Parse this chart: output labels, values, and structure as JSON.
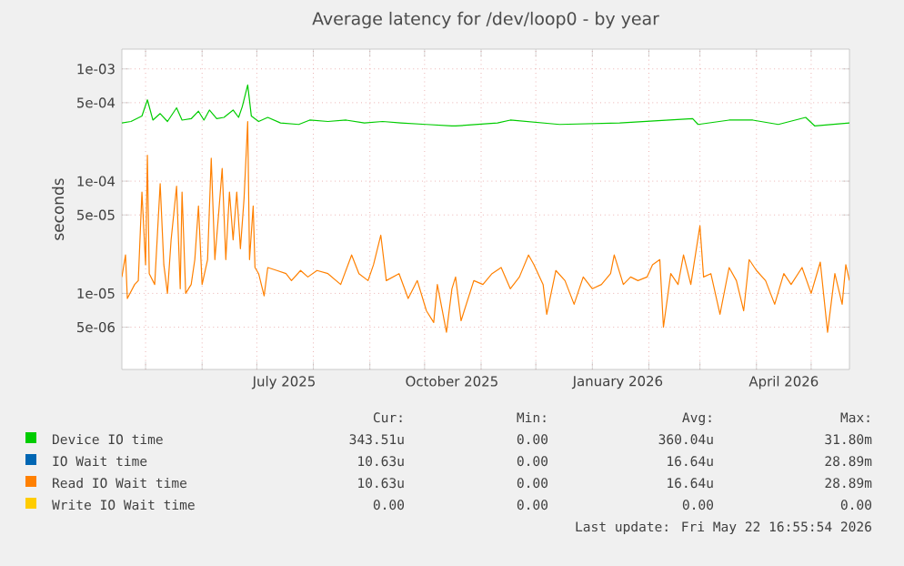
{
  "chart_data": {
    "type": "line",
    "title": "Average latency for /dev/loop0 - by year",
    "ylabel": "seconds",
    "log": "y",
    "grid": true,
    "legend": "bottom",
    "line_style": "solid",
    "xlim": [
      "2025-04-18",
      "2026-05-22"
    ],
    "xticks": [
      {
        "value": "2025-05-01",
        "label": null
      },
      {
        "value": "2025-06-01",
        "label": null
      },
      {
        "value": "2025-07-01",
        "label": null
      },
      {
        "value": "2025-08-01",
        "label": null
      },
      {
        "value": "2025-09-01",
        "label": null
      },
      {
        "value": "2025-10-01",
        "label": null
      },
      {
        "value": "2025-11-01",
        "label": null
      },
      {
        "value": "2025-12-01",
        "label": null
      },
      {
        "value": "2026-01-01",
        "label": null
      },
      {
        "value": "2026-02-01",
        "label": null
      },
      {
        "value": "2026-03-01",
        "label": null
      },
      {
        "value": "2026-04-01",
        "label": null
      },
      {
        "value": "2026-05-01",
        "label": null
      },
      {
        "value": "2025-07-16",
        "label": "July 2025"
      },
      {
        "value": "2025-10-16",
        "label": "October 2025"
      },
      {
        "value": "2026-01-15",
        "label": "January 2026"
      },
      {
        "value": "2026-04-16",
        "label": "April 2026"
      }
    ],
    "ylim": [
      2.1e-06,
      0.0015
    ],
    "yticks": [
      {
        "value": 5e-06,
        "label": "5e-06"
      },
      {
        "value": 1e-05,
        "label": "1e-05"
      },
      {
        "value": 5e-05,
        "label": "5e-05"
      },
      {
        "value": 0.0001,
        "label": "1e-04"
      },
      {
        "value": 0.0005,
        "label": "5e-04"
      },
      {
        "value": 0.001,
        "label": "1e-03"
      }
    ],
    "series": [
      {
        "name": "Device IO time",
        "color": "#00cc00",
        "x": [
          "2025-04-18",
          "2025-04-23",
          "2025-04-29",
          "2025-05-02",
          "2025-05-05",
          "2025-05-09",
          "2025-05-13",
          "2025-05-18",
          "2025-05-21",
          "2025-05-26",
          "2025-05-30",
          "2025-06-02",
          "2025-06-05",
          "2025-06-09",
          "2025-06-13",
          "2025-06-18",
          "2025-06-21",
          "2025-06-23",
          "2025-06-26",
          "2025-06-28",
          "2025-07-02",
          "2025-07-07",
          "2025-07-14",
          "2025-07-24",
          "2025-07-30",
          "2025-08-09",
          "2025-08-19",
          "2025-08-29",
          "2025-09-08",
          "2025-09-18",
          "2025-10-02",
          "2025-10-16",
          "2025-10-18",
          "2025-11-10",
          "2025-11-17",
          "2025-12-14",
          "2026-01-16",
          "2026-02-25",
          "2026-02-28",
          "2026-03-17",
          "2026-03-30",
          "2026-04-13",
          "2026-04-28",
          "2026-05-03",
          "2026-05-22"
        ],
        "values": [
          0.00033,
          0.00034,
          0.00038,
          0.00053,
          0.00035,
          0.0004,
          0.00034,
          0.00045,
          0.00035,
          0.00036,
          0.00042,
          0.00035,
          0.00043,
          0.00036,
          0.00037,
          0.00043,
          0.00037,
          0.00046,
          0.00072,
          0.00038,
          0.00034,
          0.00037,
          0.00033,
          0.00032,
          0.00035,
          0.00034,
          0.00035,
          0.00033,
          0.00034,
          0.00033,
          0.00032,
          0.00031,
          0.00031,
          0.00033,
          0.00035,
          0.00032,
          0.00033,
          0.00036,
          0.00032,
          0.00035,
          0.00035,
          0.00032,
          0.00037,
          0.00031,
          0.00033
        ]
      },
      {
        "name": "IO Wait time",
        "color": "#0066b3"
      },
      {
        "name": "Read IO Wait time",
        "color": "#ff8000",
        "x": [
          "2025-04-18",
          "2025-04-20",
          "2025-04-21",
          "2025-04-25",
          "2025-04-27",
          "2025-04-29",
          "2025-05-01",
          "2025-05-02",
          "2025-05-03",
          "2025-05-06",
          "2025-05-09",
          "2025-05-11",
          "2025-05-13",
          "2025-05-15",
          "2025-05-18",
          "2025-05-20",
          "2025-05-21",
          "2025-05-23",
          "2025-05-26",
          "2025-05-28",
          "2025-05-30",
          "2025-06-01",
          "2025-06-04",
          "2025-06-06",
          "2025-06-08",
          "2025-06-10",
          "2025-06-12",
          "2025-06-14",
          "2025-06-16",
          "2025-06-18",
          "2025-06-20",
          "2025-06-22",
          "2025-06-24",
          "2025-06-26",
          "2025-06-27",
          "2025-06-29",
          "2025-06-30",
          "2025-07-02",
          "2025-07-05",
          "2025-07-07",
          "2025-07-12",
          "2025-07-17",
          "2025-07-20",
          "2025-07-25",
          "2025-07-29",
          "2025-08-03",
          "2025-08-09",
          "2025-08-16",
          "2025-08-22",
          "2025-08-26",
          "2025-08-31",
          "2025-09-03",
          "2025-09-07",
          "2025-09-10",
          "2025-09-17",
          "2025-09-22",
          "2025-09-27",
          "2025-10-02",
          "2025-10-06",
          "2025-10-08",
          "2025-10-13",
          "2025-10-16",
          "2025-10-18",
          "2025-10-21",
          "2025-10-28",
          "2025-11-02",
          "2025-11-07",
          "2025-11-12",
          "2025-11-17",
          "2025-11-22",
          "2025-11-27",
          "2025-11-30",
          "2025-12-05",
          "2025-12-07",
          "2025-12-12",
          "2025-12-17",
          "2025-12-22",
          "2025-12-27",
          "2026-01-01",
          "2026-01-06",
          "2026-01-11",
          "2026-01-13",
          "2026-01-18",
          "2026-01-22",
          "2026-01-26",
          "2026-01-31",
          "2026-02-03",
          "2026-02-07",
          "2026-02-09",
          "2026-02-13",
          "2026-02-17",
          "2026-02-20",
          "2026-02-24",
          "2026-03-01",
          "2026-03-03",
          "2026-03-07",
          "2026-03-12",
          "2026-03-17",
          "2026-03-21",
          "2026-03-25",
          "2026-03-28",
          "2026-04-01",
          "2026-04-06",
          "2026-04-11",
          "2026-04-16",
          "2026-04-20",
          "2026-04-26",
          "2026-05-01",
          "2026-05-06",
          "2026-05-10",
          "2026-05-14",
          "2026-05-18",
          "2026-05-20",
          "2026-05-22"
        ],
        "values": [
          1.4e-05,
          2.2e-05,
          9e-06,
          1.2e-05,
          1.3e-05,
          8e-05,
          1.8e-05,
          0.00017,
          1.5e-05,
          1.2e-05,
          9.5e-05,
          1.8e-05,
          1e-05,
          3e-05,
          9e-05,
          1.1e-05,
          8e-05,
          1e-05,
          1.2e-05,
          2e-05,
          6e-05,
          1.2e-05,
          2e-05,
          0.00016,
          2e-05,
          5e-05,
          0.00013,
          2e-05,
          8e-05,
          3e-05,
          8e-05,
          2.5e-05,
          7e-05,
          0.00034,
          2e-05,
          6e-05,
          1.7e-05,
          1.5e-05,
          9.5e-06,
          1.7e-05,
          1.6e-05,
          1.5e-05,
          1.3e-05,
          1.6e-05,
          1.4e-05,
          1.6e-05,
          1.5e-05,
          1.2e-05,
          2.2e-05,
          1.5e-05,
          1.3e-05,
          1.8e-05,
          3.3e-05,
          1.3e-05,
          1.5e-05,
          9e-06,
          1.3e-05,
          7e-06,
          5.5e-06,
          1.2e-05,
          4.5e-06,
          1.1e-05,
          1.4e-05,
          5.7e-06,
          1.3e-05,
          1.2e-05,
          1.5e-05,
          1.7e-05,
          1.1e-05,
          1.4e-05,
          2.2e-05,
          1.8e-05,
          1.2e-05,
          6.5e-06,
          1.6e-05,
          1.3e-05,
          8e-06,
          1.4e-05,
          1.1e-05,
          1.2e-05,
          1.5e-05,
          2.2e-05,
          1.2e-05,
          1.4e-05,
          1.3e-05,
          1.4e-05,
          1.8e-05,
          2e-05,
          5e-06,
          1.5e-05,
          1.2e-05,
          2.2e-05,
          1.2e-05,
          4e-05,
          1.4e-05,
          1.5e-05,
          6.5e-06,
          1.7e-05,
          1.3e-05,
          7e-06,
          2e-05,
          1.6e-05,
          1.3e-05,
          8e-06,
          1.5e-05,
          1.2e-05,
          1.7e-05,
          1e-05,
          1.9e-05,
          4.5e-06,
          1.5e-05,
          8e-06,
          1.8e-05,
          1.3e-05
        ]
      },
      {
        "name": "Write IO Wait time",
        "color": "#ffcc00"
      }
    ],
    "annotations": [
      "Cur:",
      "Min:",
      "Avg:",
      "Max:",
      "343.51u",
      "0.00",
      "360.04u",
      "31.80m",
      "10.63u",
      "0.00",
      "16.64u",
      "28.89m",
      "10.63u",
      "0.00",
      "16.64u",
      "28.89m",
      "0.00",
      "0.00",
      "0.00",
      "0.00",
      "Last update: Fri May 22 16:55:54 2026"
    ]
  }
}
